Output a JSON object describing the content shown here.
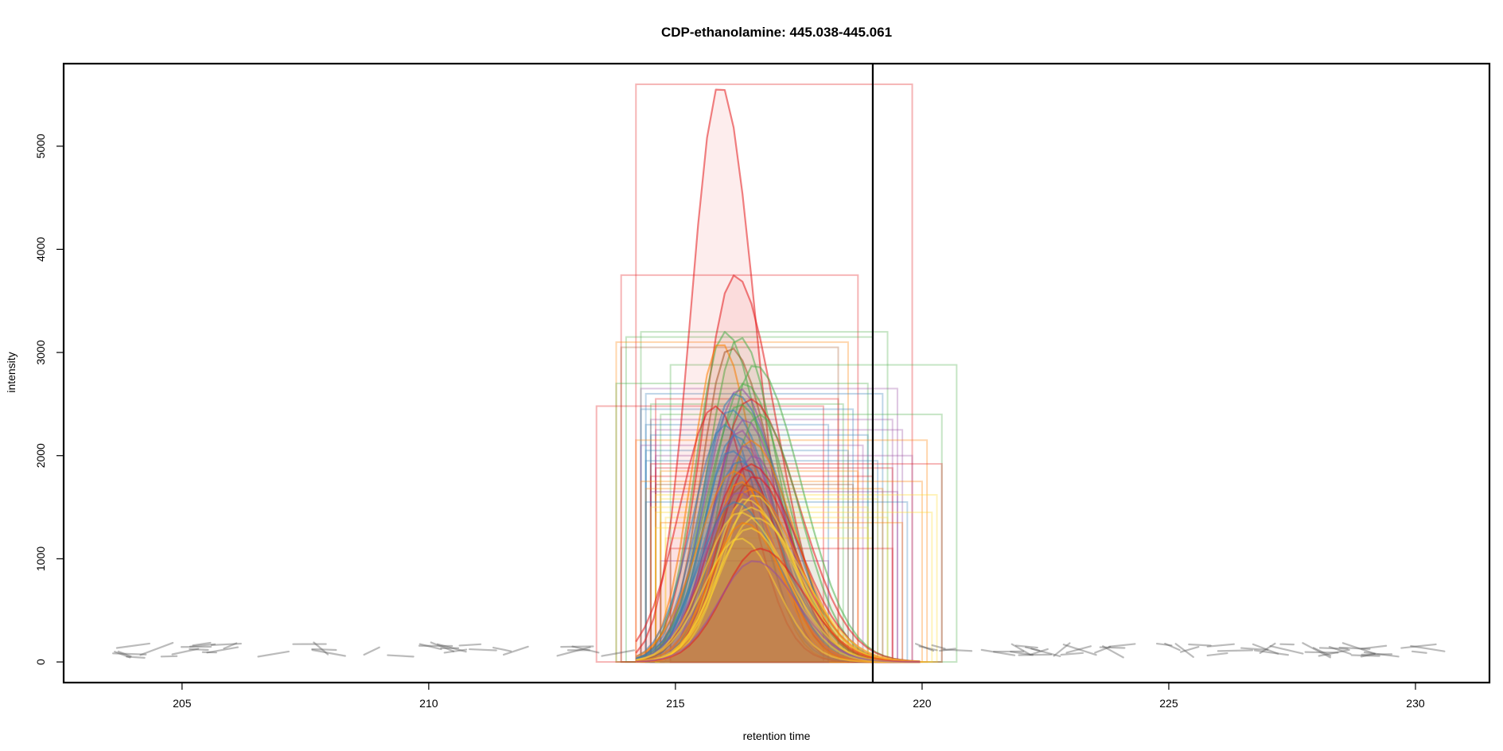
{
  "chart_data": {
    "type": "line",
    "title": "CDP-ethanolamine: 445.038-445.061",
    "xlabel": "retention time",
    "ylabel": "intensity",
    "xlim": [
      202.6,
      231.5
    ],
    "ylim": [
      -200,
      5800
    ],
    "xticks": [
      205,
      210,
      215,
      220,
      225,
      230
    ],
    "yticks": [
      0,
      1000,
      2000,
      3000,
      4000,
      5000
    ],
    "grid": false,
    "vline_x": 219.0,
    "palette": [
      "#e41a1c",
      "#377eb8",
      "#4daf4a",
      "#984ea3",
      "#ff7f00",
      "#ffd92f",
      "#a65628"
    ],
    "series": [
      {
        "color": "#e41a1c",
        "center": 215.9,
        "apex": 5600,
        "rt_min": 214.2,
        "rt_max": 219.8,
        "filled": true
      },
      {
        "color": "#e41a1c",
        "center": 216.2,
        "apex": 3750,
        "rt_min": 213.9,
        "rt_max": 218.7,
        "filled": true
      },
      {
        "color": "#4daf4a",
        "center": 216.0,
        "apex": 3200,
        "rt_min": 214.3,
        "rt_max": 219.3
      },
      {
        "color": "#4daf4a",
        "center": 216.3,
        "apex": 3150,
        "rt_min": 214.0,
        "rt_max": 219.0
      },
      {
        "color": "#ff7f00",
        "center": 215.9,
        "apex": 3100,
        "rt_min": 213.8,
        "rt_max": 218.5
      },
      {
        "color": "#a65628",
        "center": 216.1,
        "apex": 3050,
        "rt_min": 213.9,
        "rt_max": 218.3
      },
      {
        "color": "#4daf4a",
        "center": 216.6,
        "apex": 2880,
        "rt_min": 214.9,
        "rt_max": 220.7
      },
      {
        "color": "#4daf4a",
        "center": 216.4,
        "apex": 2700,
        "rt_min": 213.8,
        "rt_max": 218.9
      },
      {
        "color": "#984ea3",
        "center": 216.3,
        "apex": 2650,
        "rt_min": 214.3,
        "rt_max": 219.5
      },
      {
        "color": "#377eb8",
        "center": 216.2,
        "apex": 2600,
        "rt_min": 214.4,
        "rt_max": 219.2
      },
      {
        "color": "#e41a1c",
        "center": 216.5,
        "apex": 2550,
        "rt_min": 214.6,
        "rt_max": 218.3
      },
      {
        "color": "#4daf4a",
        "center": 216.3,
        "apex": 2500,
        "rt_min": 214.5,
        "rt_max": 218.4
      },
      {
        "color": "#e41a1c",
        "center": 215.8,
        "apex": 2480,
        "rt_min": 213.4,
        "rt_max": 218.0
      },
      {
        "color": "#377eb8",
        "center": 216.1,
        "apex": 2450,
        "rt_min": 214.3,
        "rt_max": 218.6
      },
      {
        "color": "#4daf4a",
        "center": 216.7,
        "apex": 2400,
        "rt_min": 214.7,
        "rt_max": 220.4
      },
      {
        "color": "#984ea3",
        "center": 216.4,
        "apex": 2350,
        "rt_min": 214.5,
        "rt_max": 219.4
      },
      {
        "color": "#377eb8",
        "center": 216.0,
        "apex": 2300,
        "rt_min": 214.4,
        "rt_max": 218.1
      },
      {
        "color": "#984ea3",
        "center": 216.3,
        "apex": 2250,
        "rt_min": 214.6,
        "rt_max": 219.6
      },
      {
        "color": "#377eb8",
        "center": 216.2,
        "apex": 2200,
        "rt_min": 214.5,
        "rt_max": 218.9
      },
      {
        "color": "#ff7f00",
        "center": 216.5,
        "apex": 2150,
        "rt_min": 214.2,
        "rt_max": 220.1
      },
      {
        "color": "#984ea3",
        "center": 216.4,
        "apex": 2100,
        "rt_min": 214.3,
        "rt_max": 218.8
      },
      {
        "color": "#377eb8",
        "center": 216.1,
        "apex": 2050,
        "rt_min": 214.4,
        "rt_max": 218.5
      },
      {
        "color": "#984ea3",
        "center": 216.6,
        "apex": 2000,
        "rt_min": 214.6,
        "rt_max": 219.8
      },
      {
        "color": "#377eb8",
        "center": 216.3,
        "apex": 1950,
        "rt_min": 214.4,
        "rt_max": 219.1
      },
      {
        "color": "#e41a1c",
        "center": 216.5,
        "apex": 1920,
        "rt_min": 214.5,
        "rt_max": 220.4
      },
      {
        "color": "#e41a1c",
        "center": 216.4,
        "apex": 1880,
        "rt_min": 214.6,
        "rt_max": 219.4
      },
      {
        "color": "#ff7f00",
        "center": 216.2,
        "apex": 1850,
        "rt_min": 214.7,
        "rt_max": 218.7
      },
      {
        "color": "#e41a1c",
        "center": 216.6,
        "apex": 1800,
        "rt_min": 214.5,
        "rt_max": 219.0
      },
      {
        "color": "#ff7f00",
        "center": 216.3,
        "apex": 1750,
        "rt_min": 214.3,
        "rt_max": 220.0
      },
      {
        "color": "#a65628",
        "center": 216.4,
        "apex": 1720,
        "rt_min": 214.6,
        "rt_max": 218.6
      },
      {
        "color": "#ff7f00",
        "center": 216.5,
        "apex": 1680,
        "rt_min": 214.4,
        "rt_max": 219.2
      },
      {
        "color": "#984ea3",
        "center": 216.3,
        "apex": 1650,
        "rt_min": 214.5,
        "rt_max": 219.5
      },
      {
        "color": "#ffd92f",
        "center": 216.6,
        "apex": 1620,
        "rt_min": 214.6,
        "rt_max": 220.3
      },
      {
        "color": "#ffd92f",
        "center": 216.4,
        "apex": 1580,
        "rt_min": 214.7,
        "rt_max": 219.1
      },
      {
        "color": "#377eb8",
        "center": 216.2,
        "apex": 1550,
        "rt_min": 214.4,
        "rt_max": 219.7
      },
      {
        "color": "#ffd92f",
        "center": 216.5,
        "apex": 1500,
        "rt_min": 214.5,
        "rt_max": 218.9
      },
      {
        "color": "#ffd92f",
        "center": 216.3,
        "apex": 1450,
        "rt_min": 214.6,
        "rt_max": 220.2
      },
      {
        "color": "#ffd92f",
        "center": 216.6,
        "apex": 1400,
        "rt_min": 214.8,
        "rt_max": 219.3
      },
      {
        "color": "#ff7f00",
        "center": 216.4,
        "apex": 1350,
        "rt_min": 214.7,
        "rt_max": 219.6
      },
      {
        "color": "#ffd92f",
        "center": 216.5,
        "apex": 1300,
        "rt_min": 214.6,
        "rt_max": 218.9
      },
      {
        "color": "#ffd92f",
        "center": 216.3,
        "apex": 1200,
        "rt_min": 214.8,
        "rt_max": 219.0
      },
      {
        "color": "#e41a1c",
        "center": 216.7,
        "apex": 1100,
        "rt_min": 214.9,
        "rt_max": 219.4
      },
      {
        "color": "#984ea3",
        "center": 216.6,
        "apex": 980,
        "rt_min": 214.7,
        "rt_max": 218.1
      }
    ]
  }
}
